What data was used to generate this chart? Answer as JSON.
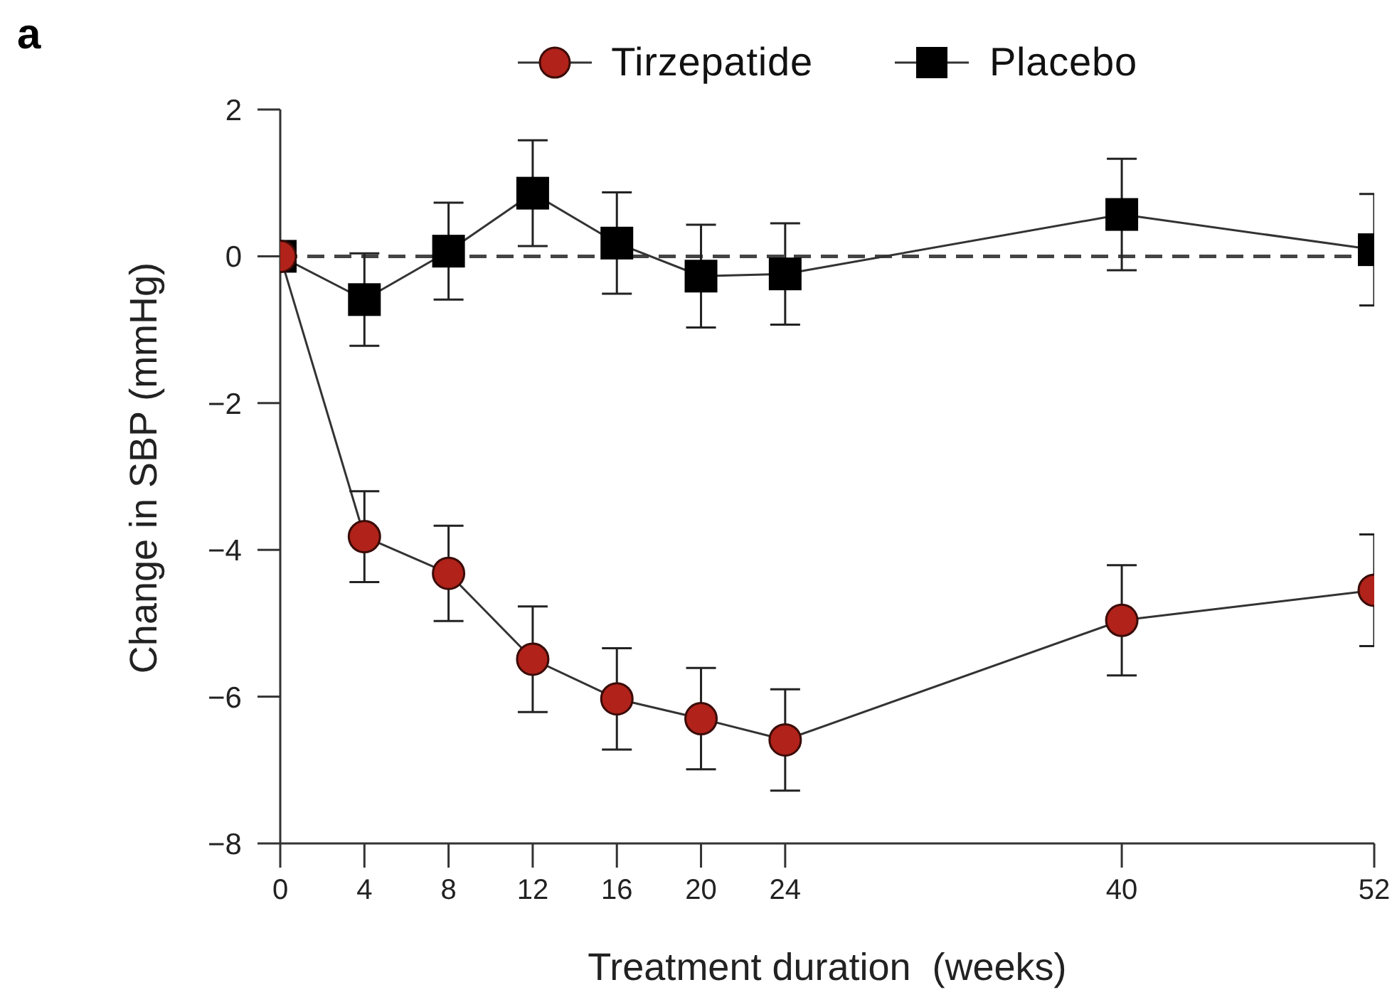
{
  "chart_data": {
    "type": "line",
    "title": "a",
    "xlabel": "Treatment duration  (weeks)",
    "ylabel": "Change in SBP (mmHg)",
    "x": [
      0,
      4,
      8,
      12,
      16,
      20,
      24,
      40,
      52
    ],
    "series": [
      {
        "name": "Tirzepatide",
        "color": "#b0221a",
        "marker": "circle",
        "values": [
          0,
          -3.82,
          -4.32,
          -5.49,
          -6.03,
          -6.3,
          -6.59,
          -4.96,
          -4.55
        ],
        "errors": [
          null,
          0.62,
          0.65,
          0.72,
          0.69,
          0.69,
          0.69,
          0.75,
          0.76
        ]
      },
      {
        "name": "Placebo",
        "color": "#000000",
        "marker": "square",
        "values": [
          0,
          -0.59,
          0.07,
          0.86,
          0.18,
          -0.27,
          -0.24,
          0.57,
          0.09
        ],
        "errors": [
          null,
          0.63,
          0.66,
          0.72,
          0.69,
          0.7,
          0.69,
          0.76,
          0.76
        ]
      }
    ],
    "xlim": [
      0,
      52
    ],
    "xticks": [
      0,
      4,
      8,
      12,
      16,
      20,
      24,
      40,
      52
    ],
    "ylim": [
      -8,
      2
    ],
    "yticks": [
      -8,
      -6,
      -4,
      -2,
      0,
      2
    ],
    "ref_lines": [
      {
        "axis": "y",
        "value": 0,
        "color": "#444444",
        "line_style": "dashed"
      }
    ],
    "legend": "top"
  }
}
